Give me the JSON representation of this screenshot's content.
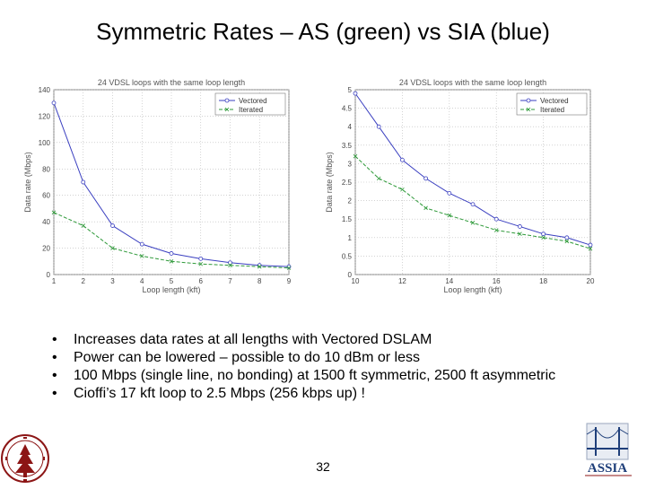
{
  "slide": {
    "title": "Symmetric Rates – AS (green) vs SIA (blue)",
    "bullets": [
      "Increases data rates at all lengths with Vectored DSLAM",
      "Power can be lowered – possible to do 10 dBm or less",
      "100 Mbps (single line, no bonding) at 1500 ft symmetric, 2500 ft asymmetric",
      "Cioffi’s 17 kft loop to 2.5 Mbps (256 kbps up) !"
    ],
    "bullet_symbol": "•",
    "page_number": "32",
    "logo_right_text": "ASSIA"
  },
  "colors": {
    "blue": "#3a3fc0",
    "green": "#2f9a3a",
    "grid": "#b8b8b8",
    "logo_red": "#8c1515",
    "logo_blue": "#1f3f7a"
  },
  "chart_data": [
    {
      "type": "line",
      "title": "24 VDSL loops with the same loop length",
      "xlabel": "Loop length (kft)",
      "ylabel": "Data rate (Mbps)",
      "xlim": [
        1,
        9
      ],
      "ylim": [
        0,
        140
      ],
      "xticks": [
        1,
        2,
        3,
        4,
        5,
        6,
        7,
        8,
        9
      ],
      "yticks": [
        0,
        20,
        40,
        60,
        80,
        100,
        120,
        140
      ],
      "grid": true,
      "legend_position": "top-right",
      "series": [
        {
          "name": "Vectored",
          "color": "#3a3fc0",
          "marker": "circle",
          "x": [
            1,
            2,
            3,
            4,
            5,
            6,
            7,
            8,
            9
          ],
          "values": [
            130,
            70,
            37,
            23,
            16,
            12,
            9,
            7,
            6
          ]
        },
        {
          "name": "Iterated",
          "color": "#2f9a3a",
          "marker": "x",
          "x": [
            1,
            2,
            3,
            4,
            5,
            6,
            7,
            8,
            9
          ],
          "values": [
            47,
            37,
            20,
            14,
            10,
            8,
            7,
            6,
            5
          ]
        }
      ]
    },
    {
      "type": "line",
      "title": "24 VDSL loops with the same loop length",
      "xlabel": "Loop length (kft)",
      "ylabel": "Data rate (Mbps)",
      "xlim": [
        10,
        20
      ],
      "ylim": [
        0,
        5
      ],
      "xticks": [
        10,
        12,
        14,
        16,
        18,
        20
      ],
      "yticks": [
        0,
        0.5,
        1,
        1.5,
        2,
        2.5,
        3,
        3.5,
        4,
        4.5,
        5
      ],
      "grid": true,
      "legend_position": "top-right",
      "series": [
        {
          "name": "Vectored",
          "color": "#3a3fc0",
          "marker": "circle",
          "x": [
            10,
            11,
            12,
            13,
            14,
            15,
            16,
            17,
            18,
            19,
            20
          ],
          "values": [
            4.9,
            4.0,
            3.1,
            2.6,
            2.2,
            1.9,
            1.5,
            1.3,
            1.1,
            1.0,
            0.8
          ]
        },
        {
          "name": "Iterated",
          "color": "#2f9a3a",
          "marker": "x",
          "x": [
            10,
            11,
            12,
            13,
            14,
            15,
            16,
            17,
            18,
            19,
            20
          ],
          "values": [
            3.2,
            2.6,
            2.3,
            1.8,
            1.6,
            1.4,
            1.2,
            1.1,
            1.0,
            0.9,
            0.7
          ]
        }
      ]
    }
  ]
}
